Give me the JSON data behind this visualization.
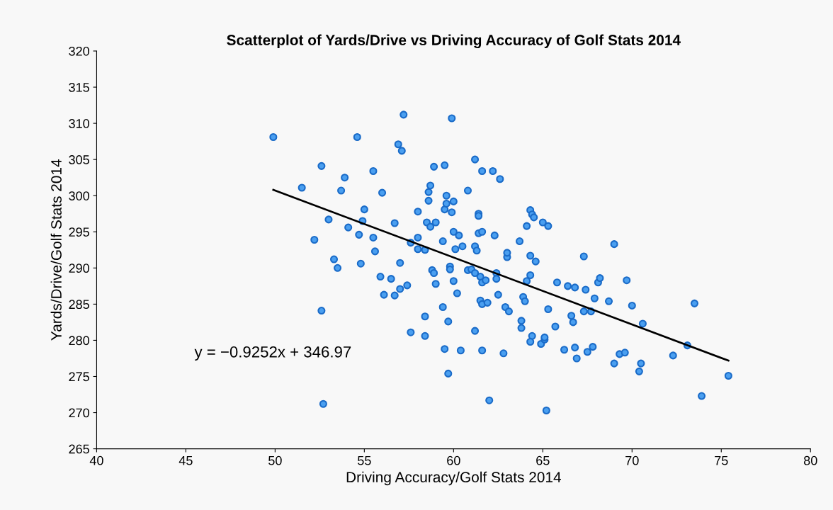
{
  "chart_data": {
    "type": "scatter",
    "title": "Scatterplot of Yards/Drive vs Driving Accuracy of Golf Stats 2014",
    "xlabel": "Driving Accuracy/Golf Stats 2014",
    "ylabel": "Yards/Drive/Golf Stats 2014",
    "annotations": [
      "y = −0.9252x + 346.97"
    ],
    "xlim": [
      40,
      80
    ],
    "xticks": [
      40,
      45,
      50,
      55,
      60,
      65,
      70,
      75,
      80
    ],
    "ylim": [
      265,
      320
    ],
    "yticks": [
      265,
      270,
      275,
      280,
      285,
      290,
      295,
      300,
      305,
      310,
      315,
      320
    ],
    "grid": false,
    "legend": false,
    "marker": "circle",
    "series": [
      {
        "color": "#4a9ff0",
        "x": [
          49.9,
          51.5,
          52.2,
          52.6,
          52.6,
          52.7,
          53.0,
          53.3,
          53.5,
          53.7,
          53.9,
          54.1,
          54.6,
          54.7,
          54.8,
          54.9,
          55.0,
          55.5,
          55.5,
          55.6,
          55.9,
          56.0,
          56.1,
          56.5,
          56.7,
          56.7,
          56.9,
          57.0,
          57.0,
          57.1,
          57.2,
          57.4,
          57.6,
          57.6,
          58.0,
          58.0,
          58.0,
          58.4,
          58.4,
          58.4,
          58.5,
          58.6,
          58.6,
          58.7,
          58.7,
          58.8,
          58.9,
          58.9,
          59.0,
          59.0,
          59.4,
          59.4,
          59.5,
          59.5,
          59.5,
          59.6,
          59.7,
          59.6,
          59.7,
          59.8,
          59.8,
          59.9,
          59.9,
          60.0,
          60.0,
          60.0,
          60.1,
          60.2,
          60.3,
          60.4,
          60.5,
          60.8,
          60.8,
          61.0,
          61.2,
          61.2,
          61.2,
          61.2,
          61.3,
          61.4,
          61.4,
          61.4,
          61.5,
          61.5,
          61.6,
          61.6,
          61.6,
          61.6,
          61.6,
          61.8,
          61.9,
          62.0,
          62.2,
          62.3,
          62.4,
          62.4,
          62.5,
          62.6,
          62.8,
          62.9,
          63.0,
          63.0,
          63.1,
          63.7,
          63.8,
          63.8,
          63.9,
          64.0,
          64.1,
          64.1,
          64.3,
          64.3,
          64.3,
          64.4,
          64.4,
          64.3,
          64.5,
          64.6,
          64.9,
          65.0,
          65.1,
          65.1,
          65.2,
          65.3,
          65.3,
          65.7,
          65.8,
          66.2,
          66.4,
          66.6,
          66.7,
          66.8,
          66.8,
          66.9,
          67.3,
          67.3,
          67.4,
          67.5,
          67.7,
          67.8,
          67.9,
          68.1,
          68.2,
          68.7,
          69.0,
          69.0,
          69.3,
          69.6,
          69.7,
          70.0,
          70.4,
          70.5,
          70.6,
          72.3,
          73.1,
          73.5,
          73.9,
          75.4
        ],
        "values": [
          308.1,
          301.1,
          293.9,
          304.1,
          284.1,
          271.2,
          296.7,
          291.2,
          290.0,
          300.7,
          302.5,
          295.6,
          308.1,
          294.6,
          290.6,
          296.5,
          298.1,
          294.2,
          303.4,
          292.3,
          288.8,
          300.4,
          286.3,
          288.5,
          286.2,
          296.2,
          307.1,
          287.1,
          290.7,
          306.2,
          311.2,
          287.6,
          293.5,
          281.1,
          297.8,
          294.2,
          292.6,
          292.5,
          283.3,
          280.6,
          296.3,
          300.5,
          299.3,
          301.4,
          295.7,
          289.7,
          289.3,
          304.0,
          296.3,
          287.8,
          293.7,
          284.6,
          278.8,
          304.2,
          298.1,
          298.9,
          282.6,
          300.0,
          275.4,
          290.2,
          289.8,
          310.7,
          297.7,
          288.2,
          295.0,
          299.2,
          292.6,
          286.5,
          294.5,
          278.6,
          293.0,
          289.7,
          300.7,
          289.8,
          281.3,
          293.0,
          289.3,
          305.0,
          292.4,
          294.8,
          297.5,
          297.2,
          288.8,
          285.5,
          288.0,
          285.0,
          303.4,
          295.0,
          278.6,
          288.3,
          285.2,
          271.7,
          303.4,
          294.5,
          289.3,
          288.5,
          286.3,
          302.3,
          278.2,
          284.6,
          291.5,
          292.1,
          284.0,
          293.7,
          282.7,
          281.7,
          286.0,
          285.4,
          288.2,
          295.8,
          298.0,
          289.0,
          291.7,
          297.4,
          280.6,
          279.8,
          297.0,
          290.9,
          279.5,
          296.3,
          280.1,
          280.4,
          270.3,
          284.3,
          295.8,
          281.9,
          288.0,
          278.7,
          287.5,
          283.4,
          282.5,
          279.0,
          287.3,
          277.5,
          284.0,
          291.6,
          287.0,
          278.4,
          284.0,
          279.1,
          285.8,
          288.0,
          288.6,
          285.4,
          293.3,
          276.8,
          278.1,
          278.3,
          288.3,
          284.8,
          275.7,
          276.8,
          282.3,
          277.9,
          279.3,
          285.1,
          272.3,
          275.1
        ]
      },
      {
        "type": "line",
        "color": "#000000",
        "marker": "none",
        "line_style": "solid",
        "x": [
          49.9,
          75.4
        ],
        "values": [
          300.8,
          277.2
        ]
      }
    ]
  }
}
